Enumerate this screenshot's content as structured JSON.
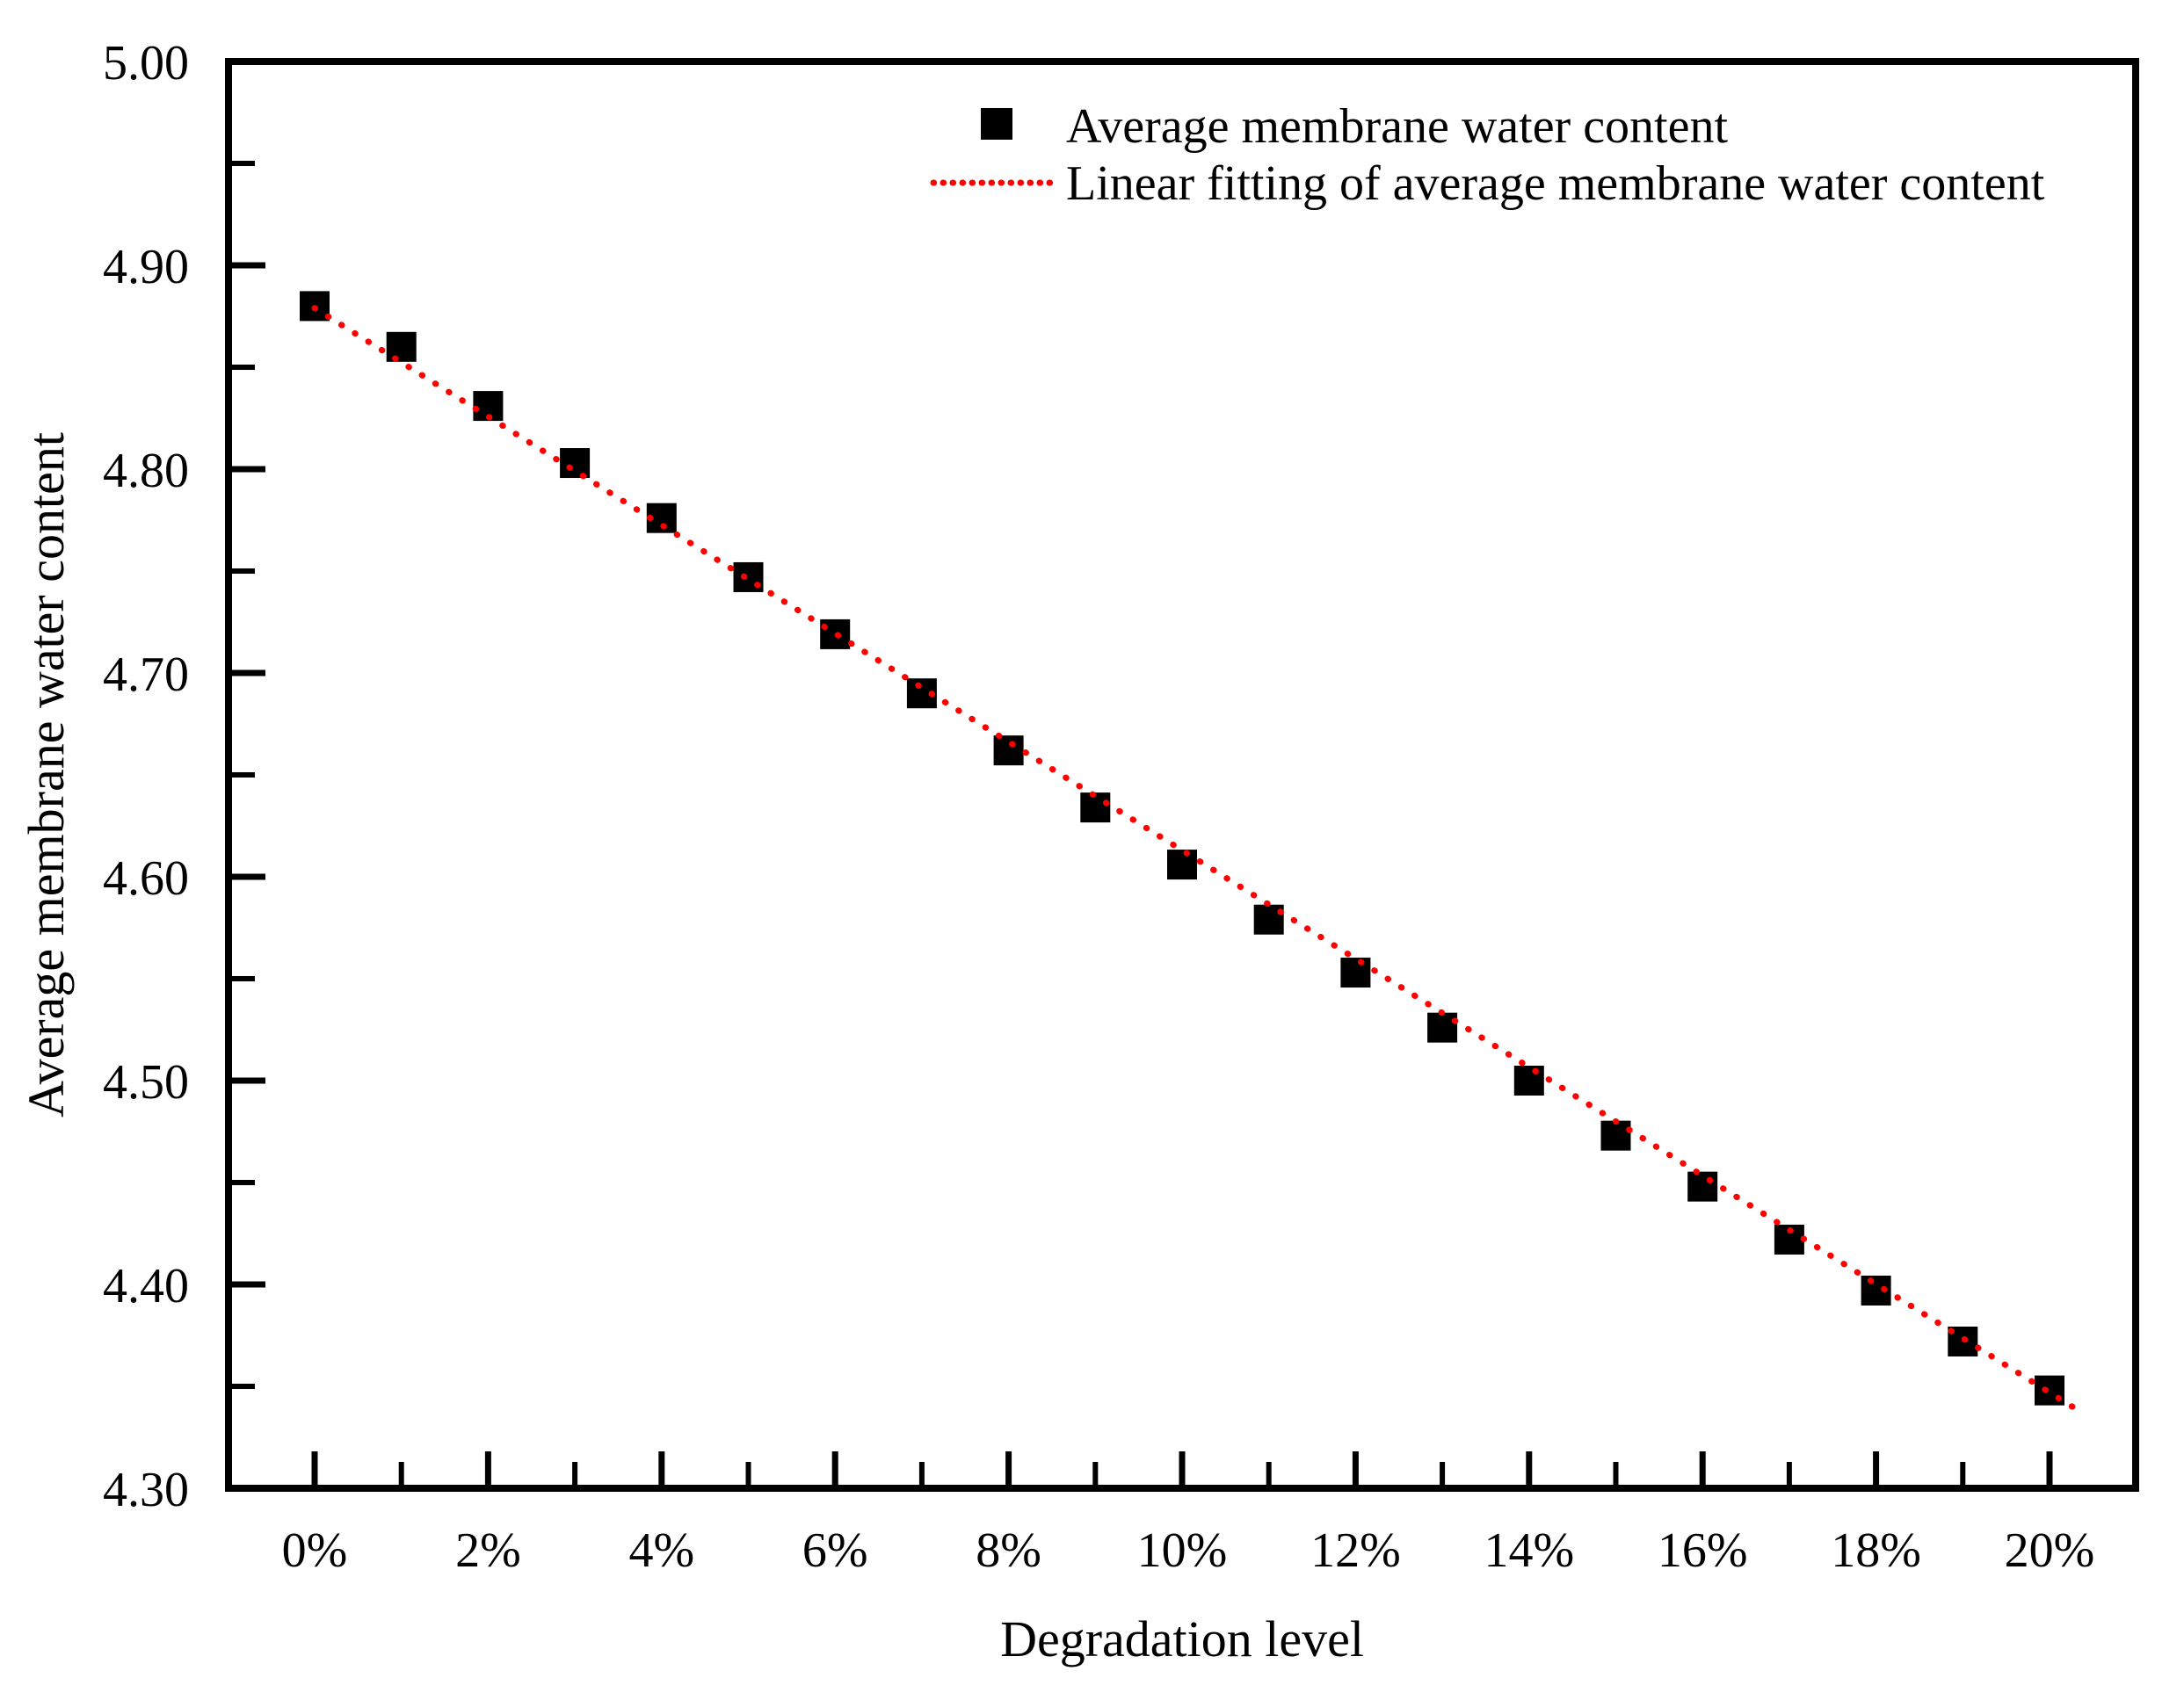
{
  "chart_data": {
    "type": "scatter",
    "title": "",
    "xlabel": "Degradation level",
    "ylabel": "Average membrane water content",
    "x_range": [
      0,
      20
    ],
    "ylim": [
      4.3,
      5.0
    ],
    "grid": false,
    "legend_position": "top-right-inside",
    "axis_color": "#000000",
    "x_major_ticks": [
      0,
      2,
      4,
      6,
      8,
      10,
      12,
      14,
      16,
      18,
      20
    ],
    "x_tick_labels": [
      "0%",
      "2%",
      "4%",
      "6%",
      "8%",
      "10%",
      "12%",
      "14%",
      "16%",
      "18%",
      "20%"
    ],
    "x_minor_ticks": [
      1,
      3,
      5,
      7,
      9,
      11,
      13,
      15,
      17,
      19
    ],
    "y_major_ticks": [
      5.0,
      4.9,
      4.8,
      4.7,
      4.6,
      4.5,
      4.4,
      4.3
    ],
    "y_tick_labels": [
      "5.00",
      "4.90",
      "4.80",
      "4.70",
      "4.60",
      "4.50",
      "4.40",
      "4.30"
    ],
    "y_minor_ticks": [
      4.95,
      4.85,
      4.75,
      4.65,
      4.55,
      4.45,
      4.35
    ],
    "series": [
      {
        "name": "Average membrane water content",
        "type": "scatter",
        "marker": "square",
        "color": "#000000",
        "x": [
          0,
          1,
          2,
          3,
          4,
          5,
          6,
          7,
          8,
          9,
          10,
          11,
          12,
          13,
          14,
          15,
          16,
          17,
          18,
          19,
          20
        ],
        "values": [
          4.88,
          4.86,
          4.831,
          4.803,
          4.776,
          4.747,
          4.719,
          4.69,
          4.662,
          4.634,
          4.606,
          4.579,
          4.553,
          4.526,
          4.5,
          4.473,
          4.448,
          4.422,
          4.397,
          4.372,
          4.348
        ]
      },
      {
        "name": "Linear fitting of average membrane water content",
        "type": "line",
        "style": "dotted",
        "color": "#ff0000",
        "fit": {
          "slope": -0.0266,
          "intercept": 4.879,
          "x_start": 0,
          "x_end": 20.3
        }
      }
    ]
  }
}
